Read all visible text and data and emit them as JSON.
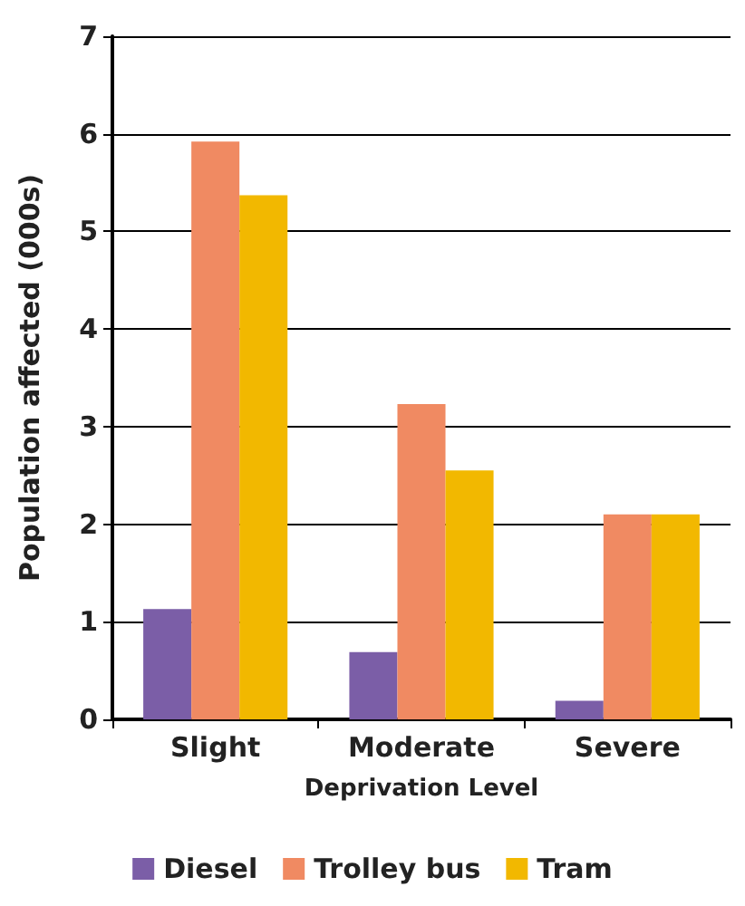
{
  "chart_data": {
    "type": "bar",
    "xlabel": "Deprivation Level",
    "ylabel": "Population affected (000s)",
    "categories": [
      "Slight",
      "Moderate",
      "Severe"
    ],
    "series": [
      {
        "name": "Diesel",
        "color": "#7b5ea7",
        "values": [
          1.13,
          0.69,
          0.19
        ]
      },
      {
        "name": "Trolley bus",
        "color": "#f08a62",
        "values": [
          5.92,
          3.23,
          2.1
        ]
      },
      {
        "name": "Tram",
        "color": "#f2b800",
        "values": [
          5.37,
          2.55,
          2.1
        ]
      }
    ],
    "ylim": [
      0,
      7
    ],
    "yticks": [
      0,
      1,
      2,
      3,
      4,
      5,
      6,
      7
    ],
    "grid": "y",
    "legend": "bottom"
  }
}
